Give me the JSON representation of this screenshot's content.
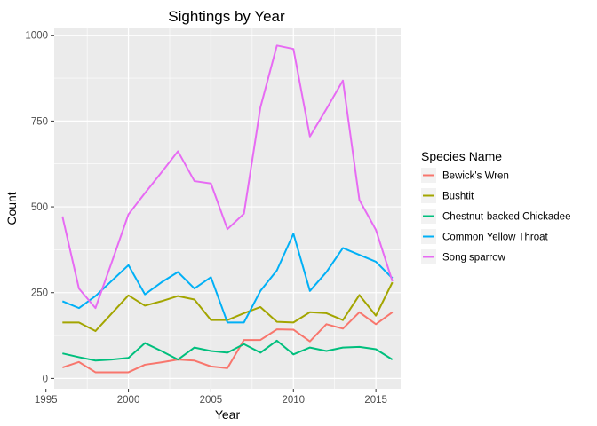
{
  "chart_data": {
    "type": "line",
    "title": "Sightings by Year",
    "xlabel": "Year",
    "ylabel": "Count",
    "xlim": [
      1995.5,
      2016.5
    ],
    "ylim": [
      -30,
      1020
    ],
    "xticks": [
      1995,
      2000,
      2005,
      2010,
      2015
    ],
    "xtick_labels": [
      "1995",
      "2000",
      "2005",
      "2010",
      "2015"
    ],
    "yticks": [
      0,
      250,
      500,
      750,
      1000
    ],
    "ytick_labels": [
      "0",
      "250",
      "500",
      "750",
      "1000"
    ],
    "grid": true,
    "legend": {
      "title": "Species Name",
      "position": "right"
    },
    "x": [
      1996,
      1997,
      1998,
      1999,
      2000,
      2001,
      2002,
      2003,
      2004,
      2005,
      2006,
      2007,
      2008,
      2009,
      2010,
      2011,
      2012,
      2013,
      2014,
      2015,
      2016
    ],
    "series": [
      {
        "name": "Bewick's Wren",
        "color": "#F8766D",
        "values": [
          32,
          48,
          18,
          18,
          18,
          40,
          47,
          55,
          52,
          35,
          30,
          112,
          112,
          143,
          142,
          108,
          158,
          145,
          193,
          158,
          193
        ]
      },
      {
        "name": "Bushtit",
        "color": "#A3A500",
        "values": [
          163,
          163,
          138,
          190,
          242,
          212,
          225,
          240,
          230,
          170,
          170,
          190,
          208,
          165,
          163,
          193,
          190,
          170,
          243,
          183,
          280
        ]
      },
      {
        "name": "Chestnut-backed Chickadee",
        "color": "#00BF7D",
        "values": [
          73,
          62,
          52,
          55,
          60,
          103,
          80,
          55,
          90,
          80,
          75,
          100,
          75,
          110,
          70,
          90,
          80,
          90,
          92,
          85,
          55
        ]
      },
      {
        "name": "Common Yellow Throat",
        "color": "#00B0F6",
        "values": [
          225,
          205,
          240,
          285,
          330,
          245,
          280,
          310,
          262,
          295,
          163,
          163,
          255,
          315,
          422,
          255,
          310,
          380,
          360,
          340,
          292
        ]
      },
      {
        "name": "Song sparrow",
        "color": "#E76BF3",
        "values": [
          472,
          262,
          205,
          340,
          478,
          540,
          600,
          662,
          575,
          568,
          435,
          480,
          790,
          970,
          960,
          705,
          785,
          868,
          520,
          433,
          283
        ]
      }
    ]
  }
}
